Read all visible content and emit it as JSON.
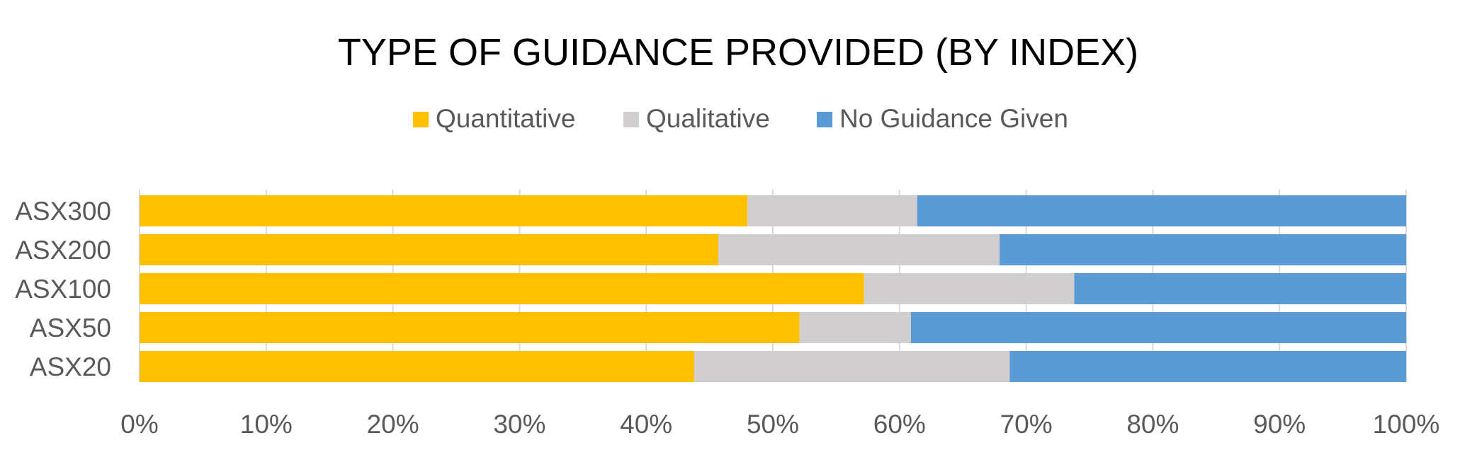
{
  "chart_data": {
    "type": "bar",
    "orientation": "horizontal",
    "stacked": "percent",
    "title": "TYPE OF GUIDANCE PROVIDED (BY INDEX)",
    "xlabel": "",
    "ylabel": "",
    "categories": [
      "ASX300",
      "ASX200",
      "ASX100",
      "ASX50",
      "ASX20"
    ],
    "series": [
      {
        "name": "Quantitative",
        "color": "#FFC000",
        "values": [
          48,
          45.7,
          57.2,
          52.1,
          43.8
        ]
      },
      {
        "name": "Qualitative",
        "color": "#D0CECE",
        "values": [
          13.4,
          22.2,
          16.6,
          8.8,
          24.9
        ]
      },
      {
        "name": "No Guidance Given",
        "color": "#5B9BD5",
        "values": [
          38.6,
          32.1,
          26.2,
          39.1,
          31.3
        ]
      }
    ],
    "xlim": [
      0,
      100
    ],
    "xticks": [
      "0%",
      "10%",
      "20%",
      "30%",
      "40%",
      "50%",
      "60%",
      "70%",
      "80%",
      "90%",
      "100%"
    ],
    "grid": true,
    "legend_position": "top-center"
  }
}
